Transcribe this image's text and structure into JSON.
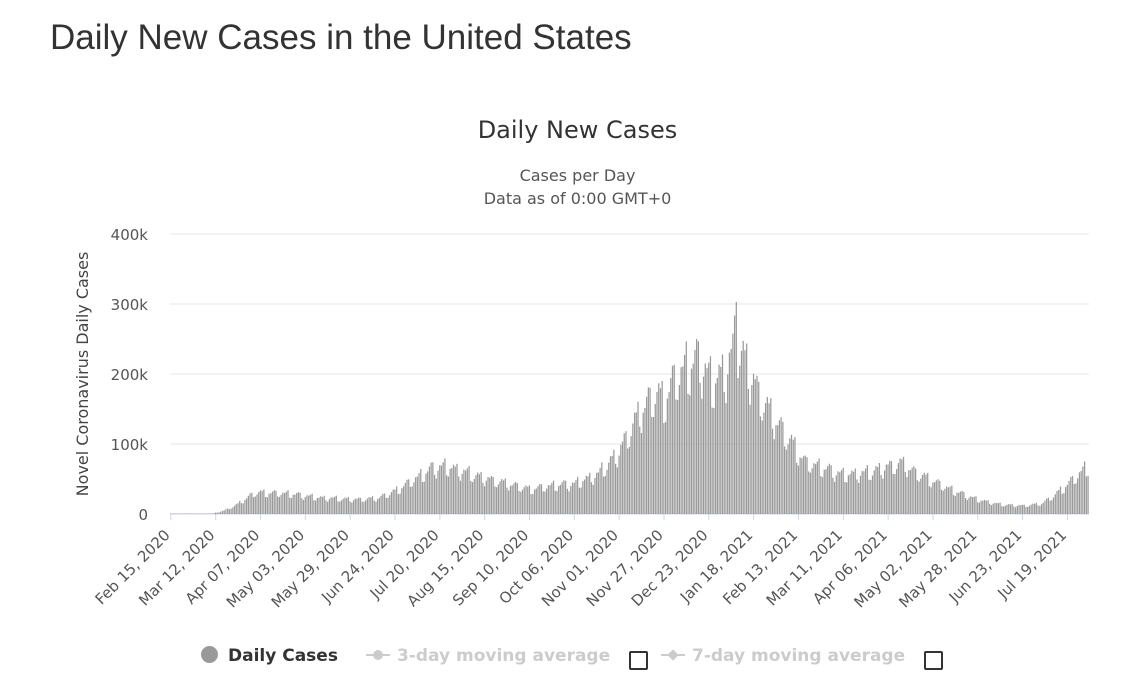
{
  "page": {
    "title": "Daily New Cases in the United States"
  },
  "chart_data": {
    "type": "bar",
    "title": "Daily New Cases",
    "subtitle": [
      "Cases per Day",
      "Data as of 0:00 GMT+0"
    ],
    "ylabel": "Novel Coronavirus Daily Cases",
    "xlabel": "",
    "ylim": [
      0,
      400000
    ],
    "yticks": [
      0,
      100000,
      200000,
      300000,
      400000
    ],
    "ytick_labels": [
      "0",
      "100k",
      "200k",
      "300k",
      "400k"
    ],
    "x_start": "2020-02-15",
    "x_end": "2021-07-31",
    "xtick_labels": [
      "Feb 15, 2020",
      "Mar 12, 2020",
      "Apr 07, 2020",
      "May 03, 2020",
      "May 29, 2020",
      "Jun 24, 2020",
      "Jul 20, 2020",
      "Aug 15, 2020",
      "Sep 10, 2020",
      "Oct 06, 2020",
      "Nov 01, 2020",
      "Nov 27, 2020",
      "Dec 23, 2020",
      "Jan 18, 2021",
      "Feb 13, 2021",
      "Mar 11, 2021",
      "Apr 06, 2021",
      "May 02, 2021",
      "May 28, 2021",
      "Jun 23, 2021",
      "Jul 19, 2021"
    ],
    "grid": true,
    "legend_position": "bottom",
    "bar_color": "#999999",
    "weekly_pattern": [
      0.92,
      1.0,
      1.05,
      1.08,
      1.12,
      0.82,
      0.78
    ],
    "trend": [
      [
        "2020-02-15",
        0
      ],
      [
        "2020-03-10",
        500
      ],
      [
        "2020-03-17",
        5000
      ],
      [
        "2020-03-24",
        13000
      ],
      [
        "2020-03-31",
        25000
      ],
      [
        "2020-04-04",
        31000
      ],
      [
        "2020-04-10",
        31000
      ],
      [
        "2020-04-24",
        29500
      ],
      [
        "2020-05-10",
        24000
      ],
      [
        "2020-06-01",
        21000
      ],
      [
        "2020-06-14",
        23000
      ],
      [
        "2020-06-24",
        33000
      ],
      [
        "2020-07-05",
        50000
      ],
      [
        "2020-07-16",
        67000
      ],
      [
        "2020-07-24",
        69000
      ],
      [
        "2020-08-01",
        63000
      ],
      [
        "2020-08-15",
        52000
      ],
      [
        "2020-09-01",
        42000
      ],
      [
        "2020-09-10",
        36000
      ],
      [
        "2020-09-25",
        42000
      ],
      [
        "2020-10-06",
        44000
      ],
      [
        "2020-10-20",
        58000
      ],
      [
        "2020-11-01",
        90000
      ],
      [
        "2020-11-08",
        125000
      ],
      [
        "2020-11-15",
        155000
      ],
      [
        "2020-11-22",
        175000
      ],
      [
        "2020-11-27",
        165000
      ],
      [
        "2020-12-03",
        195000
      ],
      [
        "2020-12-10",
        215000
      ],
      [
        "2020-12-18",
        225000
      ],
      [
        "2020-12-25",
        190000
      ],
      [
        "2021-01-02",
        210000
      ],
      [
        "2021-01-08",
        250000
      ],
      [
        "2021-01-12",
        230000
      ],
      [
        "2021-01-20",
        180000
      ],
      [
        "2021-01-27",
        150000
      ],
      [
        "2021-02-03",
        125000
      ],
      [
        "2021-02-10",
        100000
      ],
      [
        "2021-02-17",
        75000
      ],
      [
        "2021-02-24",
        70000
      ],
      [
        "2021-03-11",
        57000
      ],
      [
        "2021-03-25",
        60000
      ],
      [
        "2021-04-08",
        70000
      ],
      [
        "2021-04-14",
        74000
      ],
      [
        "2021-04-22",
        60000
      ],
      [
        "2021-05-02",
        48000
      ],
      [
        "2021-05-15",
        33000
      ],
      [
        "2021-05-28",
        21000
      ],
      [
        "2021-06-10",
        14000
      ],
      [
        "2021-06-23",
        12000
      ],
      [
        "2021-07-04",
        15000
      ],
      [
        "2021-07-12",
        28000
      ],
      [
        "2021-07-20",
        45000
      ],
      [
        "2021-07-31",
        70000
      ]
    ],
    "spikes": [
      [
        "2021-01-08",
        303000
      ]
    ],
    "series": [
      {
        "name": "Daily Cases",
        "visible": true,
        "color": "#999999"
      },
      {
        "name": "3-day moving average",
        "visible": false,
        "color": "#cccccc"
      },
      {
        "name": "7-day moving average",
        "visible": false,
        "color": "#cccccc"
      }
    ]
  }
}
